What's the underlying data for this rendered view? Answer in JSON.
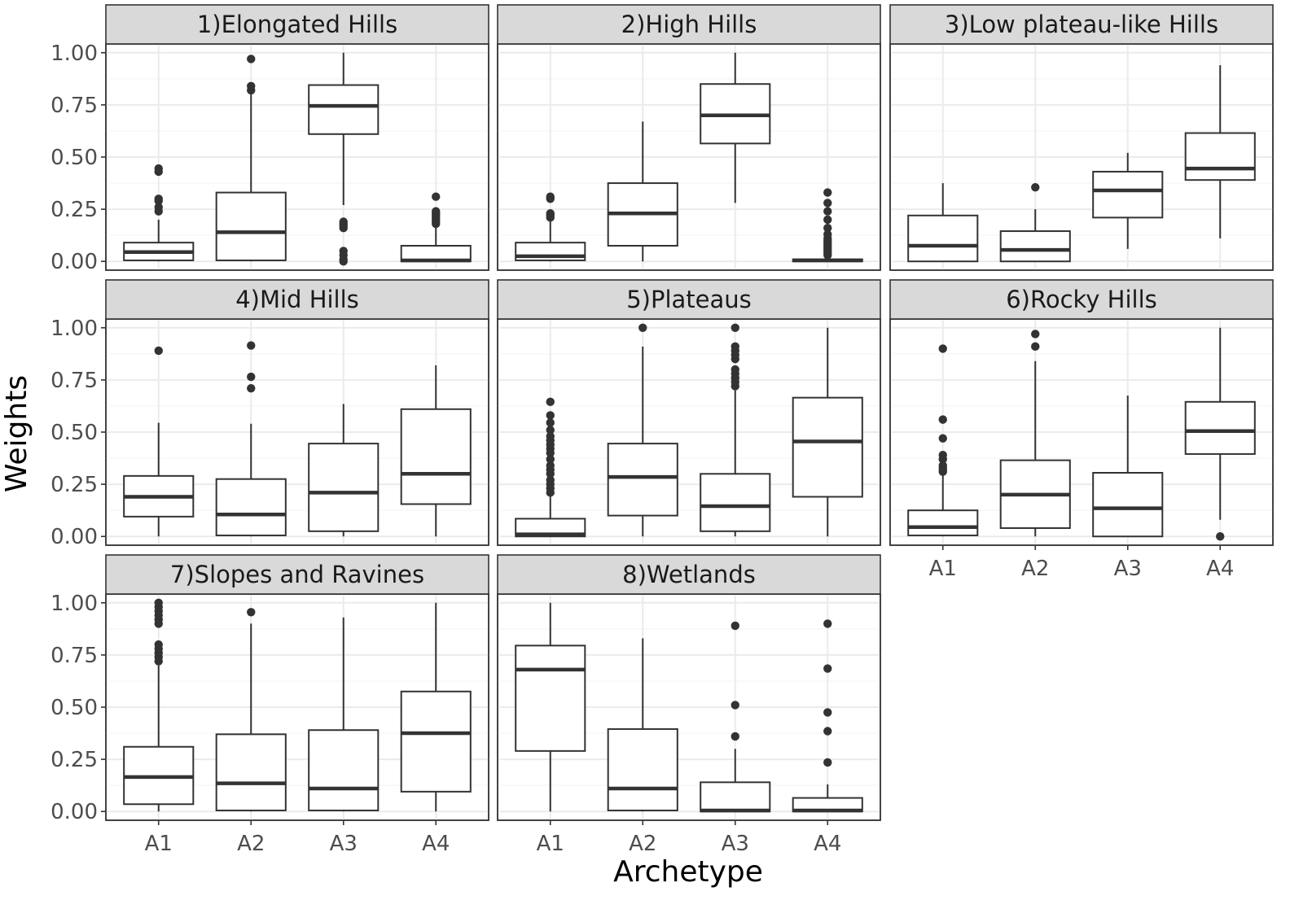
{
  "chart_data": {
    "type": "boxplot",
    "xlabel": "Archetype",
    "ylabel": "Weights",
    "categories": [
      "A1",
      "A2",
      "A3",
      "A4"
    ],
    "ylim": [
      0,
      1
    ],
    "yticks": [
      0,
      0.25,
      0.5,
      0.75,
      1.0
    ],
    "ytick_labels": [
      "0.00",
      "0.25",
      "0.50",
      "0.75",
      "1.00"
    ],
    "grid": true,
    "panels": [
      {
        "title": "1)Elongated Hills",
        "boxes": [
          {
            "category": "A1",
            "lower_whisker": 0.0,
            "q1": 0.005,
            "median": 0.045,
            "q3": 0.09,
            "upper_whisker": 0.2,
            "outliers": [
              0.24,
              0.26,
              0.29,
              0.3,
              0.43,
              0.445
            ]
          },
          {
            "category": "A2",
            "lower_whisker": 0.0,
            "q1": 0.005,
            "median": 0.14,
            "q3": 0.33,
            "upper_whisker": 0.8,
            "outliers": [
              0.82,
              0.84,
              0.97
            ]
          },
          {
            "category": "A3",
            "lower_whisker": 0.27,
            "q1": 0.61,
            "median": 0.745,
            "q3": 0.845,
            "upper_whisker": 1.0,
            "outliers": [
              0.0,
              0.01,
              0.03,
              0.05,
              0.16,
              0.17,
              0.18,
              0.19
            ]
          },
          {
            "category": "A4",
            "lower_whisker": 0.0,
            "q1": 0.0,
            "median": 0.005,
            "q3": 0.075,
            "upper_whisker": 0.17,
            "outliers": [
              0.18,
              0.19,
              0.2,
              0.21,
              0.22,
              0.23,
              0.24,
              0.31
            ]
          }
        ]
      },
      {
        "title": "2)High Hills",
        "boxes": [
          {
            "category": "A1",
            "lower_whisker": 0.0,
            "q1": 0.005,
            "median": 0.025,
            "q3": 0.09,
            "upper_whisker": 0.2,
            "outliers": [
              0.21,
              0.22,
              0.23,
              0.3,
              0.31
            ]
          },
          {
            "category": "A2",
            "lower_whisker": 0.0,
            "q1": 0.075,
            "median": 0.23,
            "q3": 0.375,
            "upper_whisker": 0.67,
            "outliers": []
          },
          {
            "category": "A3",
            "lower_whisker": 0.28,
            "q1": 0.565,
            "median": 0.7,
            "q3": 0.85,
            "upper_whisker": 1.0,
            "outliers": []
          },
          {
            "category": "A4",
            "lower_whisker": 0.0,
            "q1": 0.0,
            "median": 0.005,
            "q3": 0.01,
            "upper_whisker": 0.02,
            "outliers": [
              0.03,
              0.04,
              0.05,
              0.06,
              0.07,
              0.08,
              0.09,
              0.1,
              0.11,
              0.13,
              0.16,
              0.2,
              0.24,
              0.28,
              0.33
            ]
          }
        ]
      },
      {
        "title": "3)Low plateau-like Hills",
        "boxes": [
          {
            "category": "A1",
            "lower_whisker": 0.0,
            "q1": 0.0,
            "median": 0.075,
            "q3": 0.22,
            "upper_whisker": 0.375,
            "outliers": []
          },
          {
            "category": "A2",
            "lower_whisker": 0.0,
            "q1": 0.0,
            "median": 0.055,
            "q3": 0.145,
            "upper_whisker": 0.25,
            "outliers": [
              0.355
            ]
          },
          {
            "category": "A3",
            "lower_whisker": 0.06,
            "q1": 0.21,
            "median": 0.34,
            "q3": 0.43,
            "upper_whisker": 0.52,
            "outliers": []
          },
          {
            "category": "A4",
            "lower_whisker": 0.11,
            "q1": 0.39,
            "median": 0.445,
            "q3": 0.615,
            "upper_whisker": 0.94,
            "outliers": []
          }
        ]
      },
      {
        "title": "4)Mid Hills",
        "boxes": [
          {
            "category": "A1",
            "lower_whisker": 0.0,
            "q1": 0.095,
            "median": 0.19,
            "q3": 0.29,
            "upper_whisker": 0.545,
            "outliers": [
              0.89
            ]
          },
          {
            "category": "A2",
            "lower_whisker": 0.0,
            "q1": 0.005,
            "median": 0.105,
            "q3": 0.275,
            "upper_whisker": 0.54,
            "outliers": [
              0.71,
              0.765,
              0.915
            ]
          },
          {
            "category": "A3",
            "lower_whisker": 0.0,
            "q1": 0.025,
            "median": 0.21,
            "q3": 0.445,
            "upper_whisker": 0.635,
            "outliers": []
          },
          {
            "category": "A4",
            "lower_whisker": 0.0,
            "q1": 0.155,
            "median": 0.3,
            "q3": 0.61,
            "upper_whisker": 0.82,
            "outliers": []
          }
        ]
      },
      {
        "title": "5)Plateaus",
        "boxes": [
          {
            "category": "A1",
            "lower_whisker": 0.0,
            "q1": 0.0,
            "median": 0.01,
            "q3": 0.085,
            "upper_whisker": 0.2,
            "outliers": [
              0.21,
              0.23,
              0.25,
              0.27,
              0.3,
              0.32,
              0.34,
              0.37,
              0.4,
              0.42,
              0.44,
              0.46,
              0.48,
              0.51,
              0.545,
              0.58,
              0.645
            ]
          },
          {
            "category": "A2",
            "lower_whisker": 0.0,
            "q1": 0.1,
            "median": 0.285,
            "q3": 0.445,
            "upper_whisker": 0.91,
            "outliers": [
              1.0
            ]
          },
          {
            "category": "A3",
            "lower_whisker": 0.0,
            "q1": 0.025,
            "median": 0.145,
            "q3": 0.3,
            "upper_whisker": 0.7,
            "outliers": [
              0.72,
              0.74,
              0.76,
              0.78,
              0.8,
              0.85,
              0.87,
              0.89,
              0.91,
              1.0
            ]
          },
          {
            "category": "A4",
            "lower_whisker": 0.0,
            "q1": 0.19,
            "median": 0.455,
            "q3": 0.665,
            "upper_whisker": 1.0,
            "outliers": []
          }
        ]
      },
      {
        "title": "6)Rocky Hills",
        "boxes": [
          {
            "category": "A1",
            "lower_whisker": 0.0,
            "q1": 0.005,
            "median": 0.045,
            "q3": 0.125,
            "upper_whisker": 0.3,
            "outliers": [
              0.31,
              0.32,
              0.33,
              0.34,
              0.37,
              0.39,
              0.47,
              0.56,
              0.9
            ]
          },
          {
            "category": "A2",
            "lower_whisker": 0.0,
            "q1": 0.04,
            "median": 0.2,
            "q3": 0.365,
            "upper_whisker": 0.84,
            "outliers": [
              0.91,
              0.97
            ]
          },
          {
            "category": "A3",
            "lower_whisker": 0.0,
            "q1": 0.0,
            "median": 0.135,
            "q3": 0.305,
            "upper_whisker": 0.675,
            "outliers": []
          },
          {
            "category": "A4",
            "lower_whisker": 0.08,
            "q1": 0.395,
            "median": 0.505,
            "q3": 0.645,
            "upper_whisker": 1.0,
            "outliers": [
              0.0
            ]
          }
        ]
      },
      {
        "title": "7)Slopes and Ravines",
        "boxes": [
          {
            "category": "A1",
            "lower_whisker": 0.0,
            "q1": 0.035,
            "median": 0.165,
            "q3": 0.31,
            "upper_whisker": 0.7,
            "outliers": [
              0.72,
              0.74,
              0.76,
              0.78,
              0.8,
              0.9,
              0.92,
              0.94,
              0.96,
              0.98,
              1.0
            ]
          },
          {
            "category": "A2",
            "lower_whisker": 0.0,
            "q1": 0.005,
            "median": 0.135,
            "q3": 0.37,
            "upper_whisker": 0.9,
            "outliers": [
              0.955
            ]
          },
          {
            "category": "A3",
            "lower_whisker": 0.0,
            "q1": 0.005,
            "median": 0.11,
            "q3": 0.39,
            "upper_whisker": 0.93,
            "outliers": []
          },
          {
            "category": "A4",
            "lower_whisker": 0.0,
            "q1": 0.095,
            "median": 0.375,
            "q3": 0.575,
            "upper_whisker": 1.0,
            "outliers": []
          }
        ]
      },
      {
        "title": "8)Wetlands",
        "boxes": [
          {
            "category": "A1",
            "lower_whisker": 0.0,
            "q1": 0.29,
            "median": 0.68,
            "q3": 0.795,
            "upper_whisker": 1.0,
            "outliers": []
          },
          {
            "category": "A2",
            "lower_whisker": 0.0,
            "q1": 0.005,
            "median": 0.11,
            "q3": 0.395,
            "upper_whisker": 0.83,
            "outliers": []
          },
          {
            "category": "A3",
            "lower_whisker": 0.0,
            "q1": 0.0,
            "median": 0.005,
            "q3": 0.14,
            "upper_whisker": 0.3,
            "outliers": [
              0.36,
              0.51,
              0.89
            ]
          },
          {
            "category": "A4",
            "lower_whisker": 0.0,
            "q1": 0.0,
            "median": 0.005,
            "q3": 0.065,
            "upper_whisker": 0.13,
            "outliers": [
              0.235,
              0.385,
              0.475,
              0.685,
              0.9
            ]
          }
        ]
      }
    ]
  }
}
